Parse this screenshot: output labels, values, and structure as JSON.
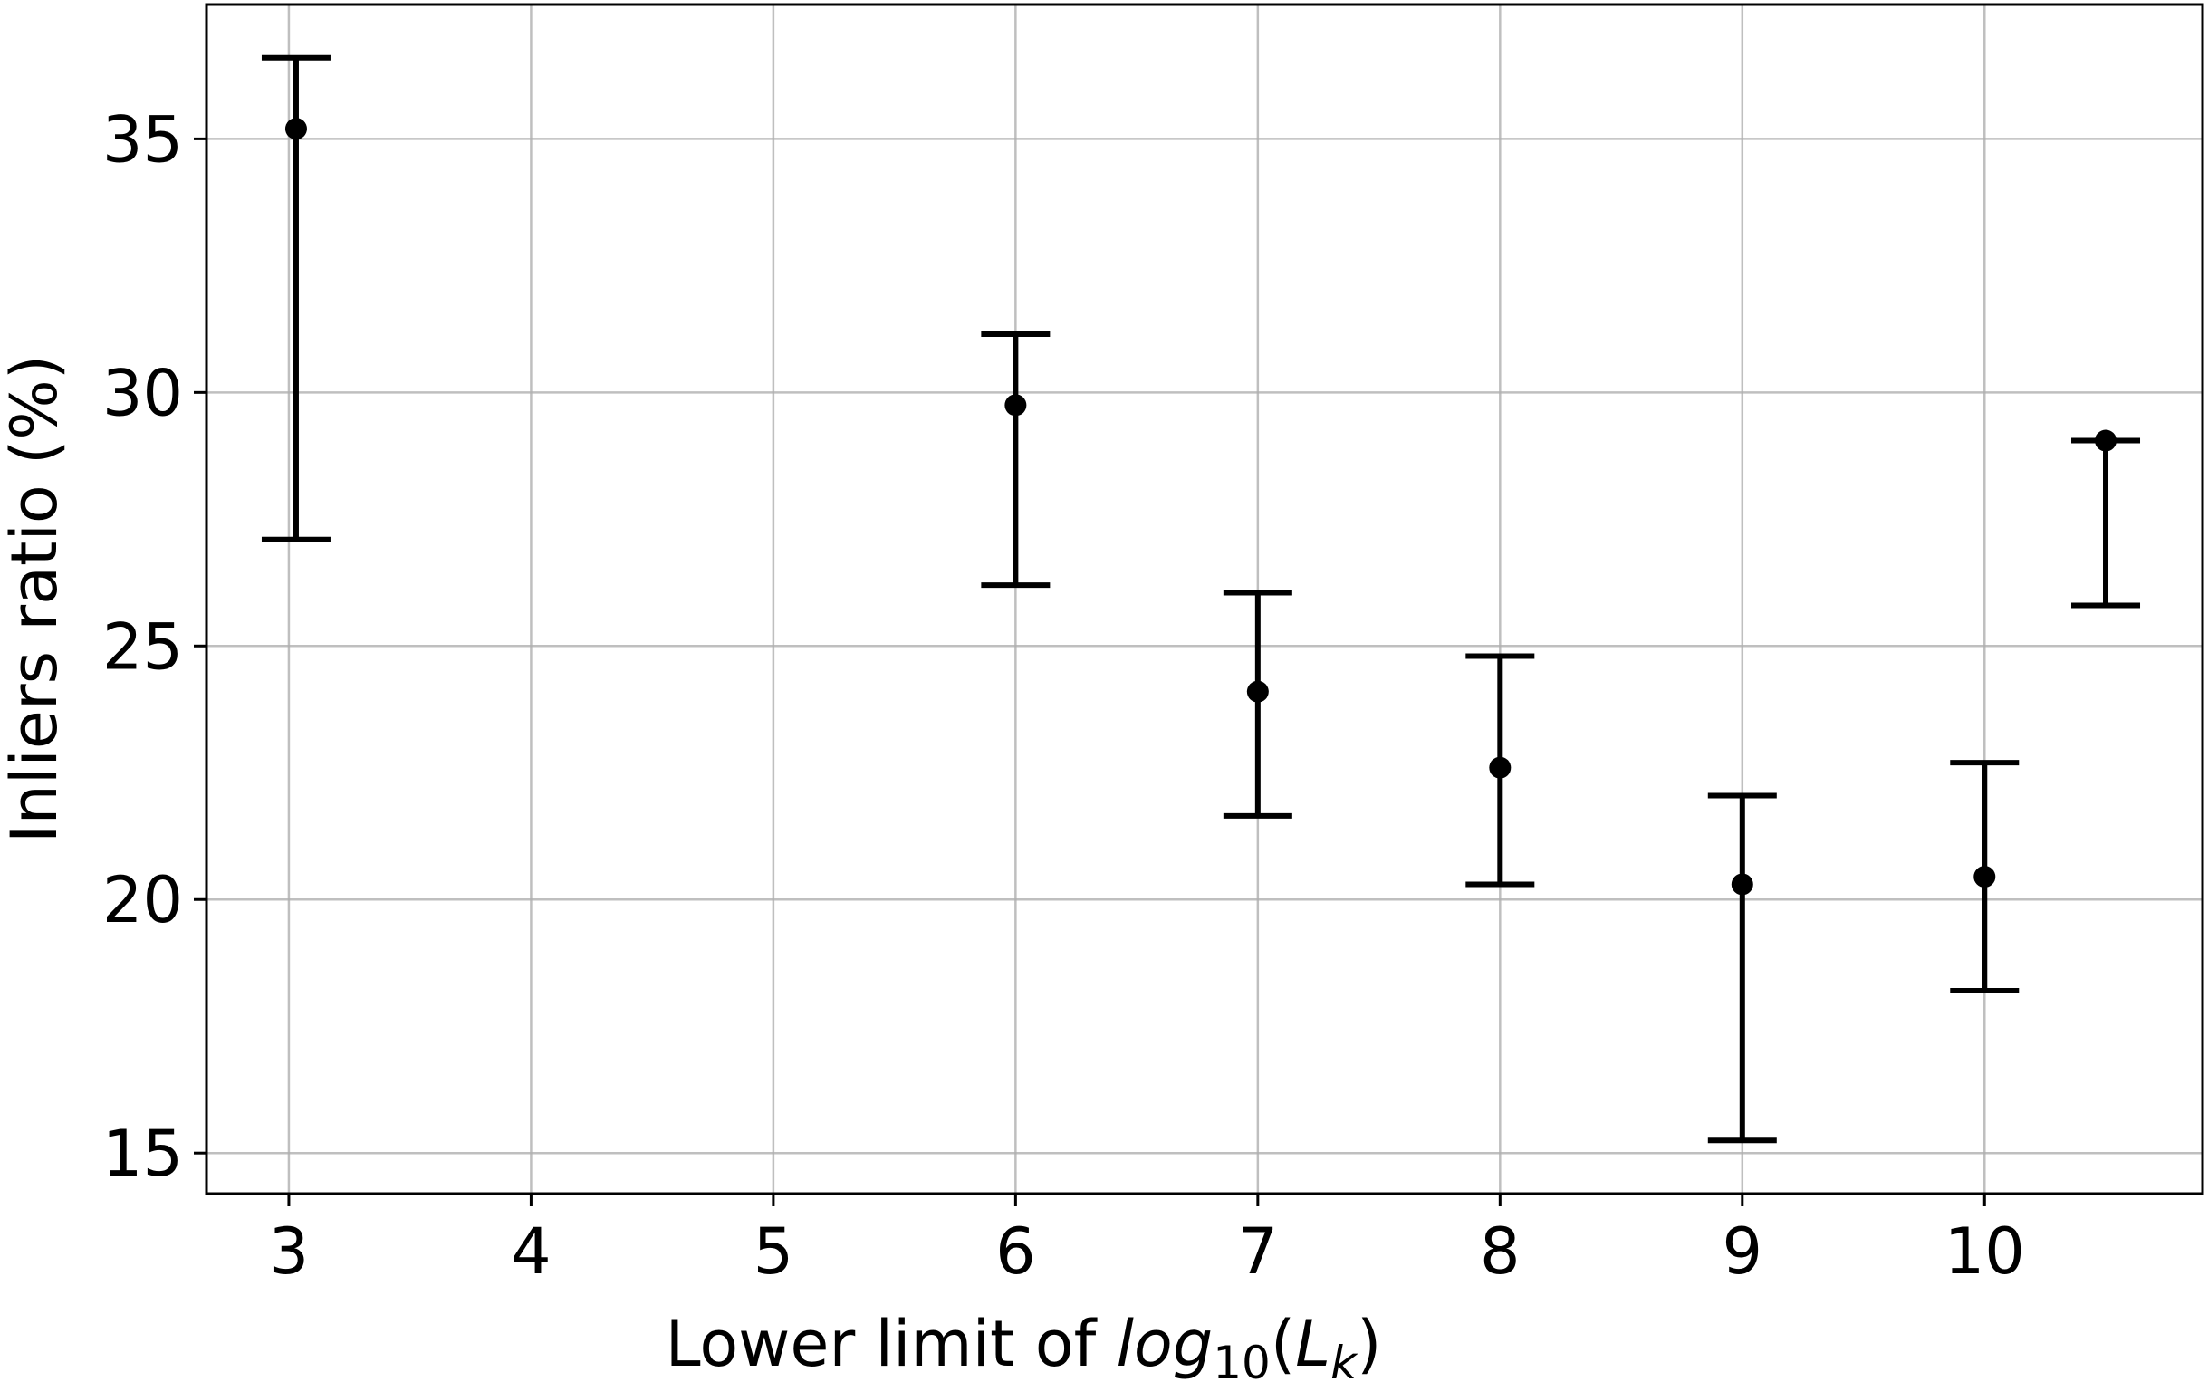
{
  "chart_data": {
    "type": "scatter",
    "title": "",
    "xlabel_prefix": "Lower limit of ",
    "xlabel_math": {
      "base": "log",
      "subscript": "10",
      "open": "(",
      "var": "L",
      "var_subscript": "k",
      "close": ")"
    },
    "ylabel": "Inliers ratio (%)",
    "xlim": [
      2.66,
      10.9
    ],
    "ylim": [
      14.2,
      37.65
    ],
    "xticks": [
      3,
      4,
      5,
      6,
      7,
      8,
      9,
      10
    ],
    "xtick_labels": [
      "3",
      "4",
      "5",
      "6",
      "7",
      "8",
      "9",
      "10"
    ],
    "yticks": [
      15,
      20,
      25,
      30,
      35
    ],
    "ytick_labels": [
      "15",
      "20",
      "25",
      "30",
      "35"
    ],
    "grid": true,
    "legend": "none",
    "marker_color": "#000000",
    "series": [
      {
        "points": [
          {
            "x": 3.03,
            "y": 35.2,
            "ylow": 27.1,
            "yhigh": 36.6
          },
          {
            "x": 6.0,
            "y": 29.75,
            "ylow": 26.2,
            "yhigh": 31.15
          },
          {
            "x": 7.0,
            "y": 24.1,
            "ylow": 21.65,
            "yhigh": 26.05
          },
          {
            "x": 8.0,
            "y": 22.6,
            "ylow": 20.3,
            "yhigh": 24.8
          },
          {
            "x": 9.0,
            "y": 20.3,
            "ylow": 15.25,
            "yhigh": 22.05
          },
          {
            "x": 10.0,
            "y": 20.45,
            "ylow": 18.2,
            "yhigh": 22.7
          },
          {
            "x": 10.5,
            "y": 29.05,
            "ylow": 25.8,
            "yhigh": 29.05
          }
        ]
      }
    ]
  }
}
